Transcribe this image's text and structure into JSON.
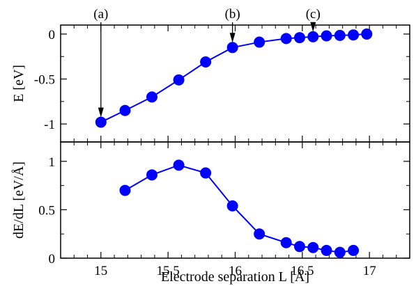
{
  "chart_data": [
    {
      "type": "line",
      "panel": "top",
      "xlabel": "",
      "ylabel": "E [eV]",
      "xlim": [
        14.7,
        17.3
      ],
      "ylim": [
        -1.2,
        0.1
      ],
      "x_ticks": [
        15,
        15.5,
        16,
        16.5,
        17
      ],
      "x_tick_labels_shown": false,
      "y_ticks": [
        0,
        -0.5,
        -1
      ],
      "y_tick_labels": [
        "0",
        "-0.5",
        "-1"
      ],
      "grid": false,
      "legend": "none",
      "series": [
        {
          "color": "#0000ff",
          "marker": "circle",
          "x": [
            15.0,
            15.18,
            15.38,
            15.58,
            15.78,
            15.98,
            16.18,
            16.38,
            16.48,
            16.58,
            16.68,
            16.78,
            16.88,
            16.98
          ],
          "y": [
            -0.98,
            -0.85,
            -0.7,
            -0.51,
            -0.31,
            -0.15,
            -0.09,
            -0.05,
            -0.04,
            -0.03,
            -0.02,
            -0.015,
            -0.01,
            0.0
          ]
        }
      ],
      "annotations": [
        {
          "label": "(a)",
          "x": 15.0,
          "y": -0.98
        },
        {
          "label": "(b)",
          "x": 15.98,
          "y": -0.15
        },
        {
          "label": "(c)",
          "x": 16.58,
          "y": -0.03
        }
      ]
    },
    {
      "type": "line",
      "panel": "bottom",
      "xlabel": "Electrode separation L [Å]",
      "ylabel": "dE/dL  [eV/Å]",
      "xlim": [
        14.7,
        17.3
      ],
      "ylim": [
        0,
        1.2
      ],
      "x_ticks": [
        15,
        15.5,
        16,
        16.5,
        17
      ],
      "x_tick_labels": [
        "15",
        "15.5",
        "16",
        "16.5",
        "17"
      ],
      "y_ticks": [
        0,
        0.5,
        1
      ],
      "y_tick_labels": [
        "0",
        "0.5",
        "1"
      ],
      "grid": false,
      "legend": "none",
      "series": [
        {
          "color": "#0000ff",
          "marker": "circle",
          "x": [
            15.18,
            15.38,
            15.58,
            15.78,
            15.98,
            16.18,
            16.38,
            16.48,
            16.58,
            16.68,
            16.78,
            16.88
          ],
          "y": [
            0.7,
            0.86,
            0.96,
            0.88,
            0.54,
            0.25,
            0.16,
            0.12,
            0.11,
            0.08,
            0.06,
            0.08
          ]
        }
      ]
    }
  ]
}
